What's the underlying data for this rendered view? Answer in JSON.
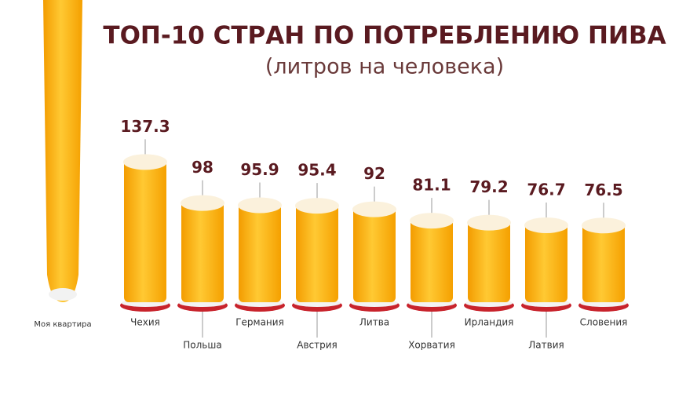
{
  "chart_data": {
    "type": "bar",
    "title": "ТОП-10 СТРАН ПО ПОТРЕБЛЕНИЮ ПИВА",
    "subtitle": "(литров на человека)",
    "annotation": "Моя квартира",
    "categories": [
      "Чехия",
      "Польша",
      "Германия",
      "Австрия",
      "Литва",
      "Хорватия",
      "Ирландия",
      "Латвия",
      "Словения"
    ],
    "values": [
      137.3,
      98,
      95.9,
      95.4,
      92,
      81.1,
      79.2,
      76.7,
      76.5
    ],
    "color": "#f7a600"
  }
}
